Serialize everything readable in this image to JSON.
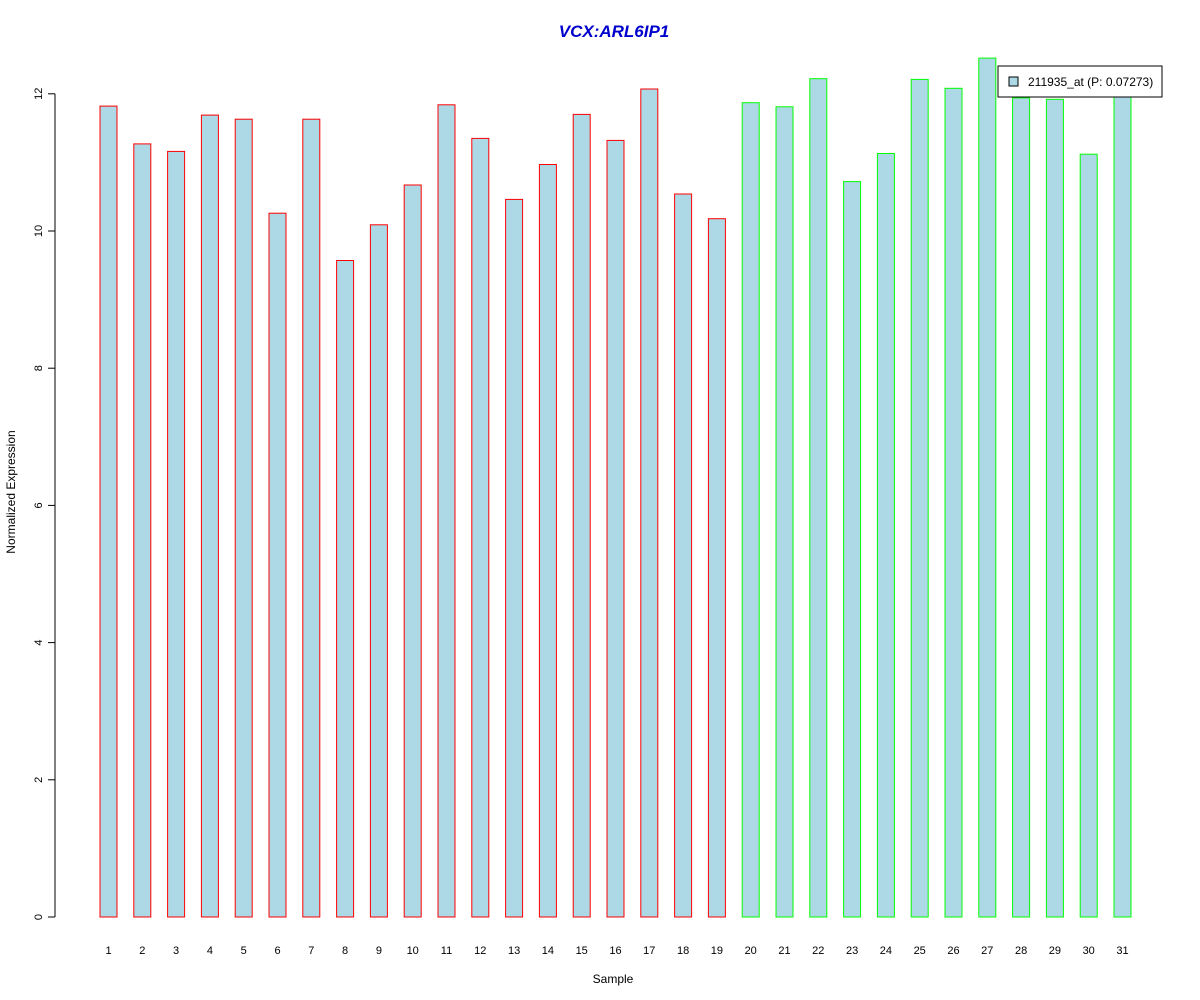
{
  "chart_data": {
    "type": "bar",
    "title": "VCX:ARL6IP1",
    "xlabel": "Sample",
    "ylabel": "Normalized Expression",
    "ylim": [
      0,
      12.5
    ],
    "yticks": [
      0,
      2,
      4,
      6,
      8,
      10,
      12
    ],
    "categories": [
      "1",
      "2",
      "3",
      "4",
      "5",
      "6",
      "7",
      "8",
      "9",
      "10",
      "11",
      "12",
      "13",
      "14",
      "15",
      "16",
      "17",
      "18",
      "19",
      "20",
      "21",
      "22",
      "23",
      "24",
      "25",
      "26",
      "27",
      "28",
      "29",
      "30",
      "31"
    ],
    "series": [
      {
        "name": "211935_at (P: 0.07273)",
        "values": [
          11.82,
          11.27,
          11.16,
          11.69,
          11.63,
          10.26,
          11.63,
          9.57,
          10.09,
          10.67,
          11.84,
          11.35,
          10.46,
          10.97,
          11.7,
          11.32,
          12.07,
          10.54,
          10.18,
          11.87,
          11.81,
          12.22,
          10.72,
          11.13,
          12.21,
          12.08,
          12.52,
          11.94,
          11.92,
          11.12,
          12.0
        ]
      }
    ],
    "bar_groups": [
      "red",
      "red",
      "red",
      "red",
      "red",
      "red",
      "red",
      "red",
      "red",
      "red",
      "red",
      "red",
      "red",
      "red",
      "red",
      "red",
      "red",
      "red",
      "red",
      "green",
      "green",
      "green",
      "green",
      "green",
      "green",
      "green",
      "green",
      "green",
      "green",
      "green",
      "green"
    ],
    "legend_position": "top-right",
    "grid": false
  },
  "colors": {
    "bar_fill": "#add8e6",
    "group_red": "#ff0000",
    "group_green": "#00ff00",
    "title": "#0000cd",
    "axis": "#000000"
  }
}
